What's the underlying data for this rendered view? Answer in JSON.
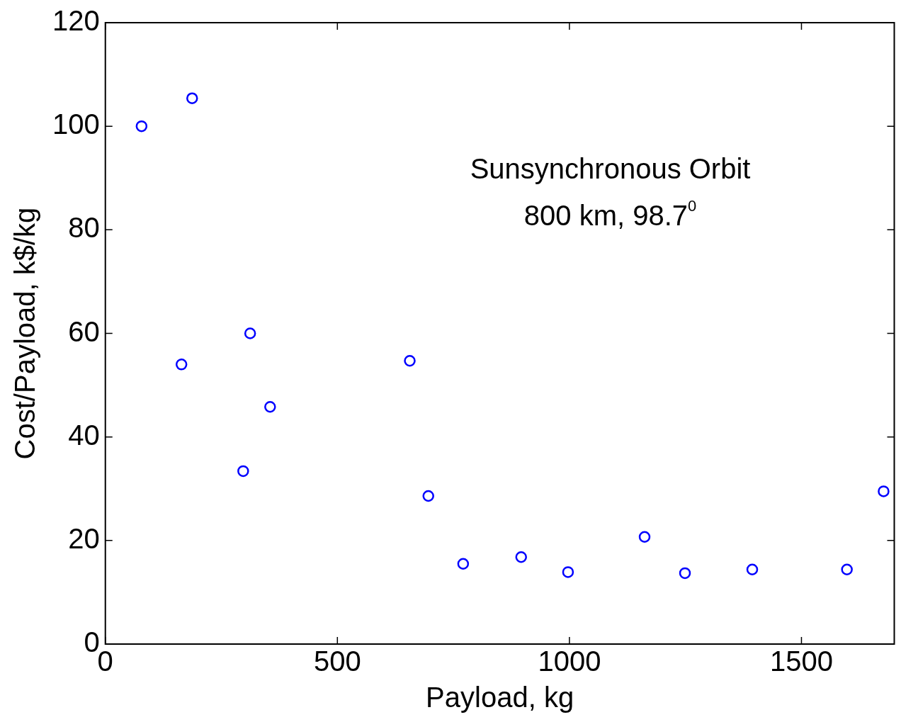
{
  "chart_data": {
    "type": "scatter",
    "xlabel": "Payload, kg",
    "ylabel": "Cost/Payload, k$/kg",
    "annotations": [
      "Sunsynchronous Orbit",
      "800 km, 98.7$^{0}$"
    ],
    "x": [
      78,
      187,
      164,
      312,
      355,
      297,
      656,
      696,
      771,
      896,
      997,
      1162,
      1249,
      1394,
      1598,
      1677
    ],
    "series": [
      {
        "color": "#0000ff",
        "values": [
          100,
          105.4,
          54,
          60,
          45.8,
          33.4,
          54.7,
          28.6,
          15.5,
          16.8,
          13.9,
          20.7,
          13.7,
          14.4,
          14.4,
          29.5
        ]
      }
    ],
    "xlim": [
      0,
      1700
    ],
    "xticks": [
      0,
      500,
      1000,
      1500
    ],
    "ylim": [
      0,
      120
    ],
    "yticks": [
      0,
      20,
      40,
      60,
      80,
      100,
      120
    ],
    "grid": false,
    "legend": false,
    "marker": "circle"
  }
}
